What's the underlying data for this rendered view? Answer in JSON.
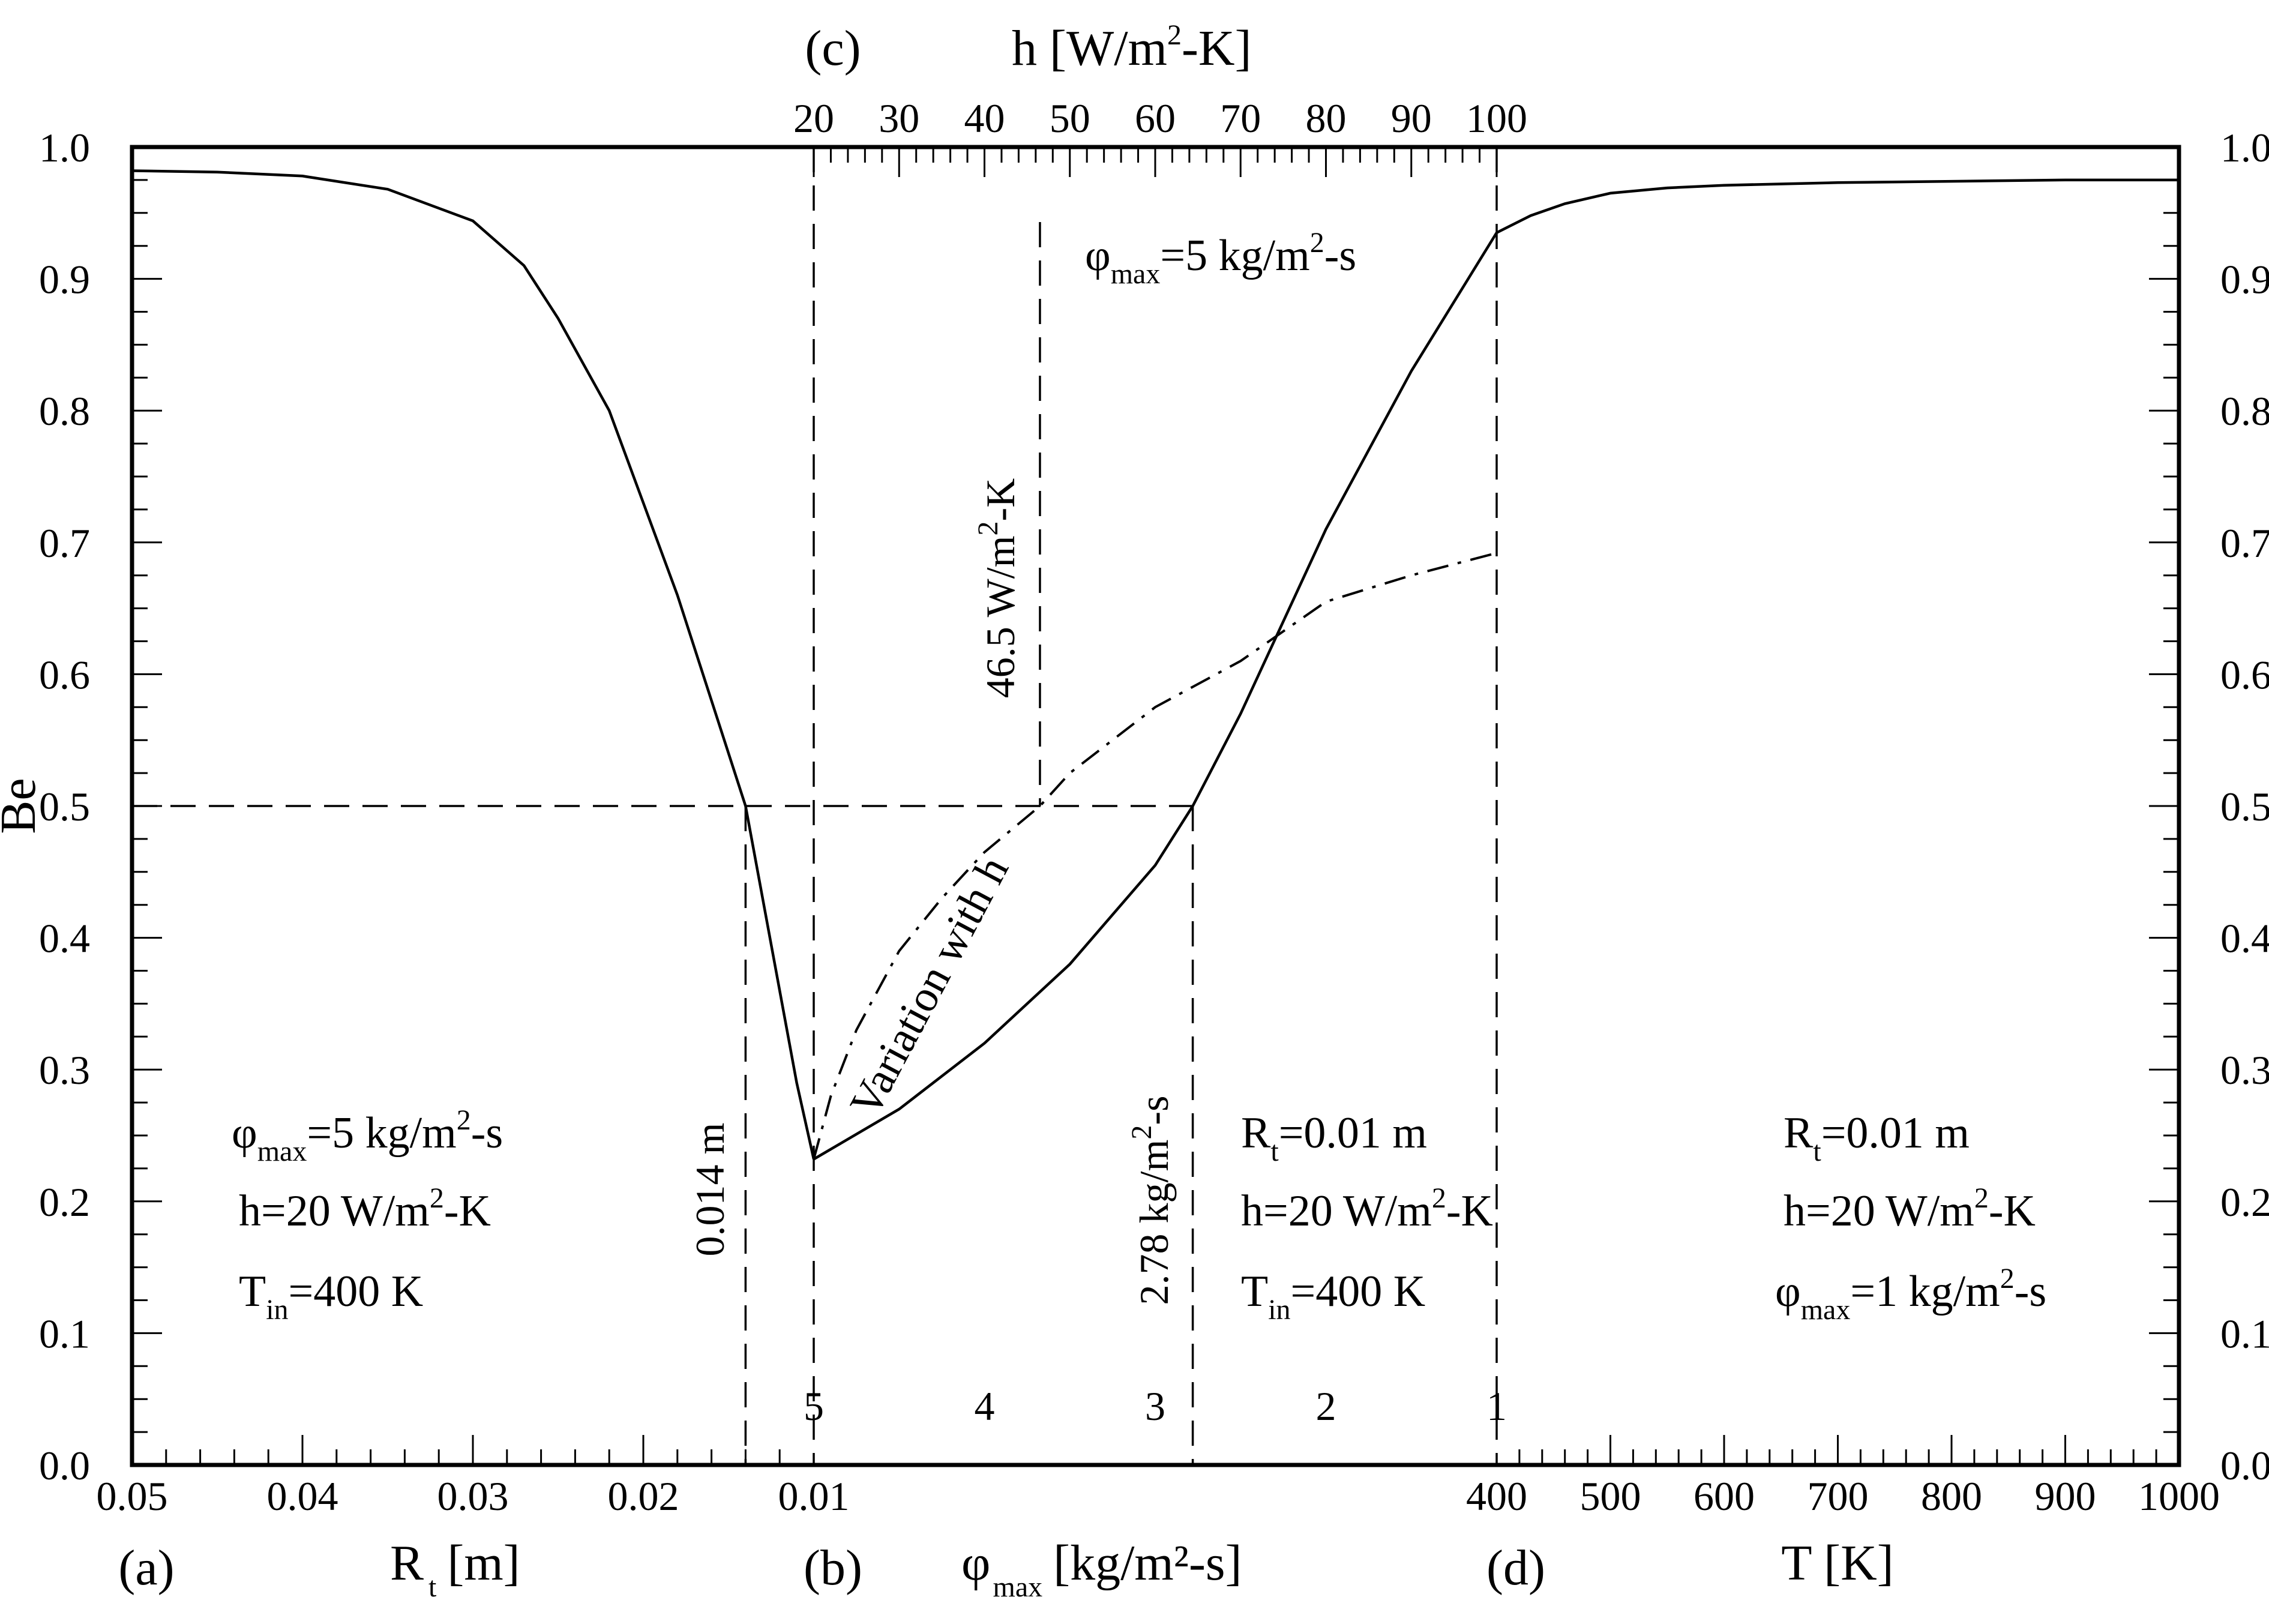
{
  "chart_data": {
    "type": "line",
    "ylabel": "Be",
    "ylim": [
      0.0,
      1.0
    ],
    "y_ticks": [
      "0.0",
      "0.1",
      "0.2",
      "0.3",
      "0.4",
      "0.5",
      "0.6",
      "0.7",
      "0.8",
      "0.9",
      "1.0"
    ],
    "panels": {
      "a": {
        "panel_label": "(a)",
        "xlabel_main": "R",
        "xlabel_sub": "t",
        "xlabel_unit": "[m]",
        "xlim": [
          0.05,
          0.01
        ],
        "x_ticks": [
          "0.05",
          "0.04",
          "0.03",
          "0.02",
          "0.01"
        ],
        "series": [
          {
            "name": "Be vs R_t",
            "x": [
              0.05,
              0.045,
              0.04,
              0.035,
              0.03,
              0.027,
              0.025,
              0.022,
              0.02,
              0.018,
              0.016,
              0.014,
              0.012,
              0.011,
              0.01
            ],
            "y": [
              0.982,
              0.981,
              0.978,
              0.968,
              0.944,
              0.91,
              0.87,
              0.8,
              0.73,
              0.66,
              0.58,
              0.5,
              0.36,
              0.29,
              0.232
            ]
          }
        ],
        "annotations": {
          "phi": "φ",
          "phi_sub": "max",
          "phi_rest": "=5 kg/m",
          "phi_exp": "2",
          "phi_tail": "-s",
          "h": "h=20 W/m",
          "h_exp": "2",
          "h_tail": "-K",
          "t": "T",
          "t_sub": "in",
          "t_rest": "=400 K",
          "marker": "0.014 m"
        }
      },
      "b": {
        "panel_label": "(b)",
        "xlabel_main": "φ",
        "xlabel_sub": "max",
        "xlabel_unit": "[kg/m²-s]",
        "xlim": [
          5,
          1
        ],
        "x_ticks": [
          "5",
          "4",
          "3",
          "2",
          "1"
        ],
        "series": [
          {
            "name": "Be vs φ_max",
            "x": [
              5,
              4.5,
              4,
              3.5,
              3,
              2.78,
              2.5,
              2,
              1.5,
              1
            ],
            "y": [
              0.232,
              0.27,
              0.32,
              0.38,
              0.455,
              0.5,
              0.57,
              0.71,
              0.83,
              0.935
            ]
          }
        ],
        "annotations": {
          "r": "R",
          "r_sub": "t",
          "r_rest": "=0.01 m",
          "h": "h=20 W/m",
          "h_exp": "2",
          "h_tail": "-K",
          "t": "T",
          "t_sub": "in",
          "t_rest": "=400 K",
          "marker": "2.78 kg/m",
          "marker_exp": "2",
          "marker_tail": "-s"
        }
      },
      "c": {
        "panel_label": "(c)",
        "xlabel_main": "h [W/m",
        "xlabel_exp": "2",
        "xlabel_tail": "-K]",
        "xlim": [
          20,
          100
        ],
        "x_ticks": [
          "20",
          "30",
          "40",
          "50",
          "60",
          "70",
          "80",
          "90",
          "100"
        ],
        "series": [
          {
            "name": "Be vs h",
            "x": [
              20,
              22,
              25,
              30,
              35,
              40,
              46.5,
              50,
              55,
              60,
              70,
              80,
              90,
              100
            ],
            "y": [
              0.232,
              0.28,
              0.33,
              0.39,
              0.43,
              0.465,
              0.5,
              0.525,
              0.55,
              0.575,
              0.61,
              0.655,
              0.675,
              0.692
            ]
          }
        ],
        "annotations": {
          "phi": "φ",
          "phi_sub": "max",
          "phi_rest": "=5 kg/m",
          "phi_exp": "2",
          "phi_tail": "-s",
          "marker": "46.5 W/m",
          "marker_exp": "2",
          "marker_tail": "-K",
          "variation": "Variation with h"
        }
      },
      "d": {
        "panel_label": "(d)",
        "xlabel": "T [K]",
        "xlim": [
          400,
          1000
        ],
        "x_ticks": [
          "400",
          "500",
          "600",
          "700",
          "800",
          "900",
          "1000"
        ],
        "series": [
          {
            "name": "Be vs T",
            "x": [
              400,
              430,
              460,
              500,
              550,
              600,
              700,
              800,
              900,
              1000
            ],
            "y": [
              0.935,
              0.948,
              0.957,
              0.965,
              0.969,
              0.971,
              0.973,
              0.974,
              0.975,
              0.975
            ]
          }
        ],
        "annotations": {
          "r": "R",
          "r_sub": "t",
          "r_rest": "=0.01 m",
          "h": "h=20 W/m",
          "h_exp": "2",
          "h_tail": "-K",
          "phi": "φ",
          "phi_sub": "max",
          "phi_rest": "=1 kg/m",
          "phi_exp": "2",
          "phi_tail": "-s"
        }
      }
    },
    "reference_line": {
      "y": 0.5
    }
  }
}
